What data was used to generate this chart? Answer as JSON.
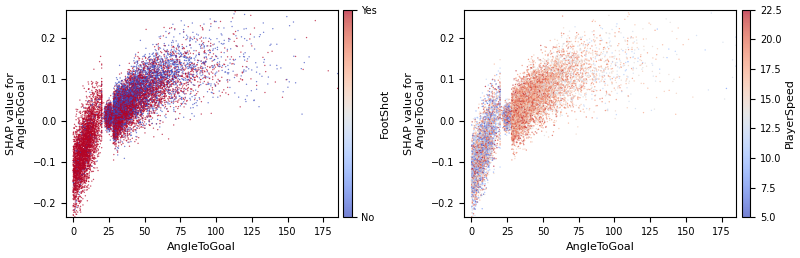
{
  "xlabel": "AngleToGoal",
  "ylabel": "SHAP value for\nAngleToGoal",
  "xlim": [
    -5,
    185
  ],
  "ylim": [
    -0.235,
    0.27
  ],
  "xticks": [
    0,
    25,
    50,
    75,
    100,
    125,
    150,
    175
  ],
  "yticks": [
    -0.2,
    -0.1,
    0.0,
    0.1,
    0.2
  ],
  "colorbar1_label": "FootShot",
  "colorbar1_ticklabels": [
    "No",
    "Yes"
  ],
  "colorbar2_label": "PlayerSpeed",
  "colorbar2_ticks": [
    5.0,
    7.5,
    10.0,
    12.5,
    15.0,
    17.5,
    20.0,
    22.5
  ],
  "point_size": 1.0,
  "n_points": 12000,
  "seed": 42,
  "figsize": [
    8.0,
    2.58
  ],
  "dpi": 100
}
